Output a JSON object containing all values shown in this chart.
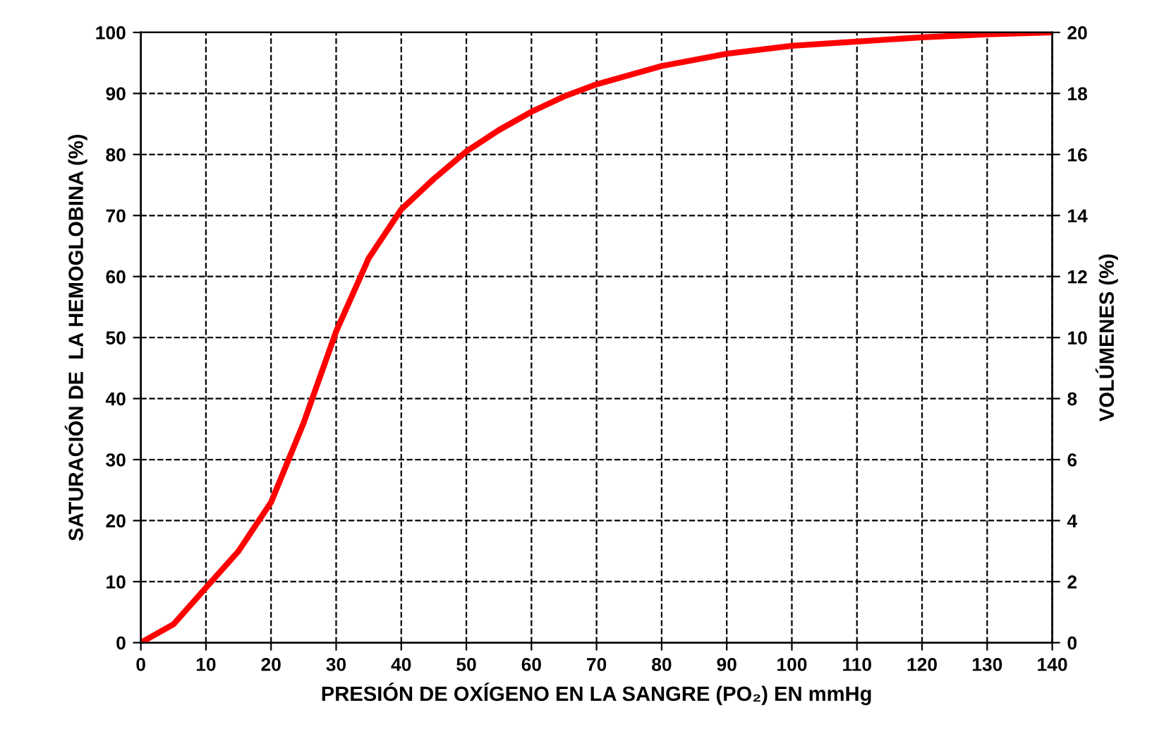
{
  "chart_data": {
    "type": "line",
    "xlabel": "PRESIÓN DE OXÍGENO EN LA SANGRE (PO₂) EN mmHg",
    "ylabel": "SATURACIÓN DE  LA HEMOGLOBINA (%)",
    "y2label": "VOLÚMENES (%)",
    "x": [
      0,
      5,
      10,
      15,
      20,
      25,
      30,
      35,
      40,
      45,
      50,
      55,
      60,
      65,
      70,
      80,
      90,
      100,
      110,
      120,
      130,
      140
    ],
    "series": [
      {
        "color": "#ff0000",
        "values": [
          0,
          3,
          9,
          15,
          23,
          36,
          51,
          63,
          71,
          76,
          80.5,
          84,
          87,
          89.5,
          91.5,
          94.5,
          96.5,
          97.8,
          98.5,
          99.2,
          99.7,
          100
        ]
      }
    ],
    "xlim": [
      0,
      140
    ],
    "xticks": [
      0,
      10,
      20,
      30,
      40,
      50,
      60,
      70,
      80,
      90,
      100,
      110,
      120,
      130,
      140
    ],
    "ylim": [
      0,
      100
    ],
    "yticks": [
      0,
      10,
      20,
      30,
      40,
      50,
      60,
      70,
      80,
      90,
      100
    ],
    "y2lim": [
      0,
      20
    ],
    "y2ticks": [
      0,
      2,
      4,
      6,
      8,
      10,
      12,
      14,
      16,
      18,
      20
    ],
    "grid": true,
    "marker": "none",
    "line_style": "solid"
  }
}
